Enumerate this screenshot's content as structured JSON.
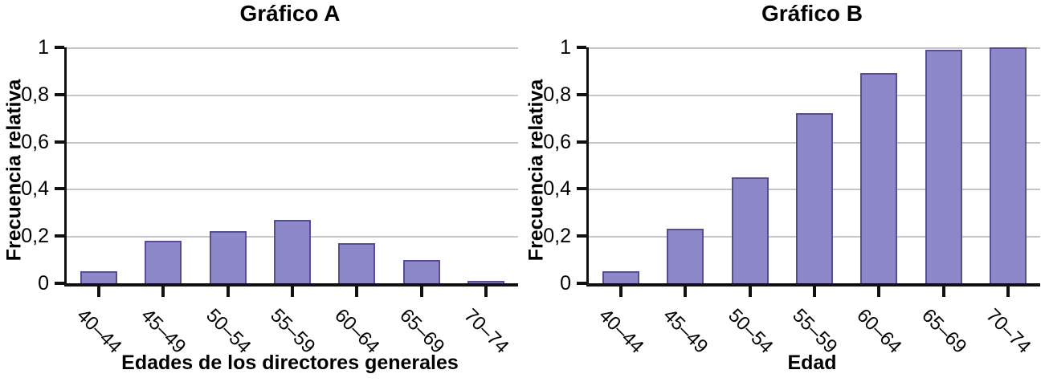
{
  "colors": {
    "bar_fill": "#8d88c8",
    "bar_border": "#554e96",
    "gridline": "#c6c6c6",
    "axis": "#111111",
    "text": "#000000",
    "background": "#ffffff"
  },
  "chart_data": [
    {
      "type": "bar",
      "title": "Gráfico A",
      "xlabel": "Edades de los directores generales",
      "ylabel": "Frecuencia relativa",
      "categories": [
        "40–44",
        "45–49",
        "50–54",
        "55–59",
        "60–64",
        "65–69",
        "70–74"
      ],
      "values": [
        0.05,
        0.18,
        0.22,
        0.27,
        0.17,
        0.1,
        0.01
      ],
      "ylim": [
        0,
        1
      ],
      "yticks": [
        {
          "value": 0,
          "label": "0"
        },
        {
          "value": 0.2,
          "label": "0,2"
        },
        {
          "value": 0.4,
          "label": "0,4"
        },
        {
          "value": 0.6,
          "label": "0,6"
        },
        {
          "value": 0.8,
          "label": "0,8"
        },
        {
          "value": 1,
          "label": "1"
        }
      ],
      "grid": true,
      "legend": false,
      "x_tick_rotation_deg": 45
    },
    {
      "type": "bar",
      "title": "Gráfico B",
      "xlabel": "Edad",
      "ylabel": "Frecuencia relativa",
      "categories": [
        "40–44",
        "45–49",
        "50–54",
        "55–59",
        "60–64",
        "65–69",
        "70–74"
      ],
      "values": [
        0.05,
        0.23,
        0.45,
        0.72,
        0.89,
        0.99,
        1.0
      ],
      "ylim": [
        0,
        1
      ],
      "yticks": [
        {
          "value": 0,
          "label": "0"
        },
        {
          "value": 0.2,
          "label": "0,2"
        },
        {
          "value": 0.4,
          "label": "0,4"
        },
        {
          "value": 0.6,
          "label": "0,6"
        },
        {
          "value": 0.8,
          "label": "0,8"
        },
        {
          "value": 1,
          "label": "1"
        }
      ],
      "grid": true,
      "legend": false,
      "x_tick_rotation_deg": 45
    }
  ]
}
